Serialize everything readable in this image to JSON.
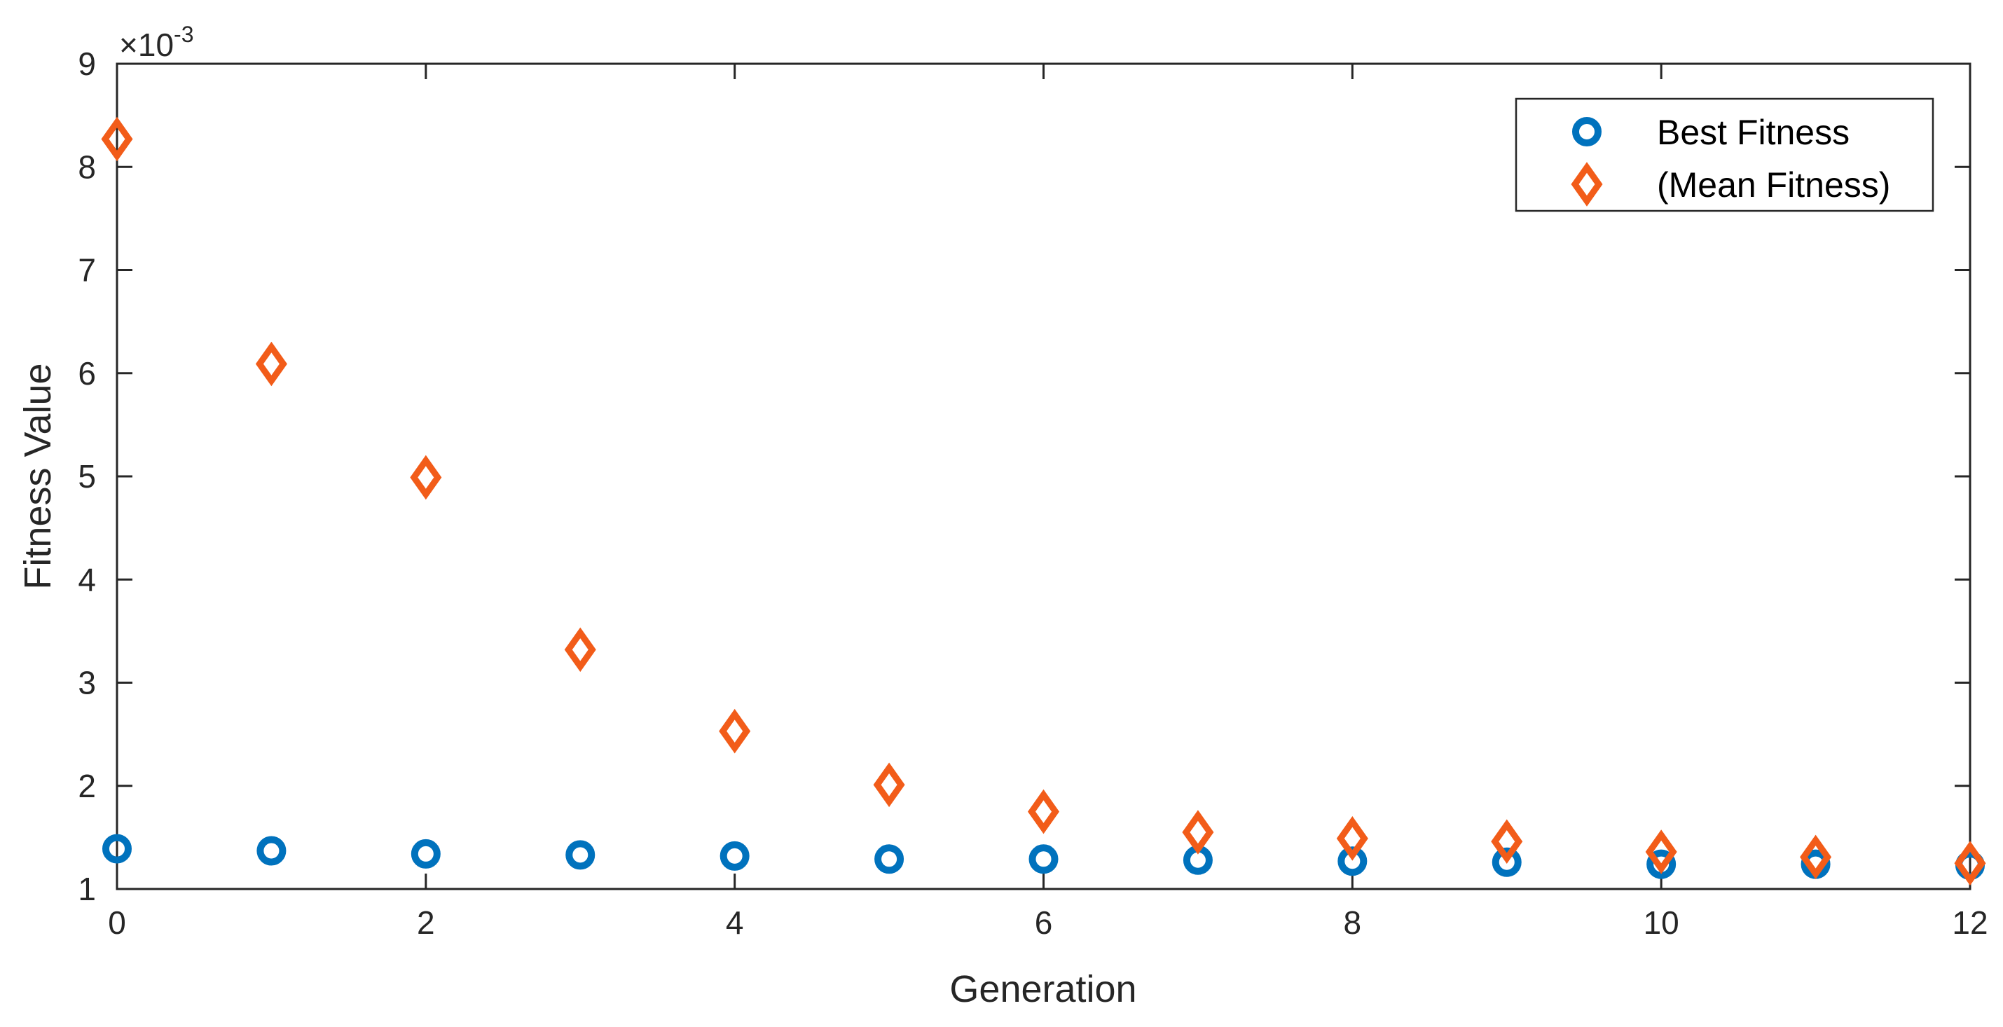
{
  "chart_data": {
    "type": "scatter",
    "xlabel": "Generation",
    "ylabel": "Fitness Value",
    "xlim": [
      0,
      12
    ],
    "ylim": [
      1,
      9
    ],
    "y_exponent_label": "×10",
    "y_exponent_power": "-3",
    "x_ticks": [
      0,
      2,
      4,
      6,
      8,
      10,
      12
    ],
    "y_ticks": [
      1,
      2,
      3,
      4,
      5,
      6,
      7,
      8,
      9
    ],
    "x_tick_labels": [
      "0",
      "2",
      "4",
      "6",
      "8",
      "10",
      "12"
    ],
    "y_tick_labels": [
      "1",
      "2",
      "3",
      "4",
      "5",
      "6",
      "7",
      "8",
      "9"
    ],
    "legend_position": "top-right",
    "grid": false,
    "series": [
      {
        "name": "Best Fitness",
        "marker": "circle",
        "color": "#0072BD",
        "x": [
          0,
          1,
          2,
          3,
          4,
          5,
          6,
          7,
          8,
          9,
          10,
          11,
          12
        ],
        "y": [
          1.39,
          1.37,
          1.34,
          1.33,
          1.32,
          1.29,
          1.29,
          1.28,
          1.27,
          1.26,
          1.24,
          1.24,
          1.23
        ]
      },
      {
        "name": "(Mean Fitness)",
        "marker": "diamond",
        "color": "#F25C19",
        "x": [
          0,
          1,
          2,
          3,
          4,
          5,
          6,
          7,
          8,
          9,
          10,
          11,
          12
        ],
        "y": [
          8.27,
          6.09,
          4.99,
          3.32,
          2.53,
          2.01,
          1.75,
          1.55,
          1.49,
          1.46,
          1.36,
          1.31,
          1.25
        ]
      }
    ]
  }
}
